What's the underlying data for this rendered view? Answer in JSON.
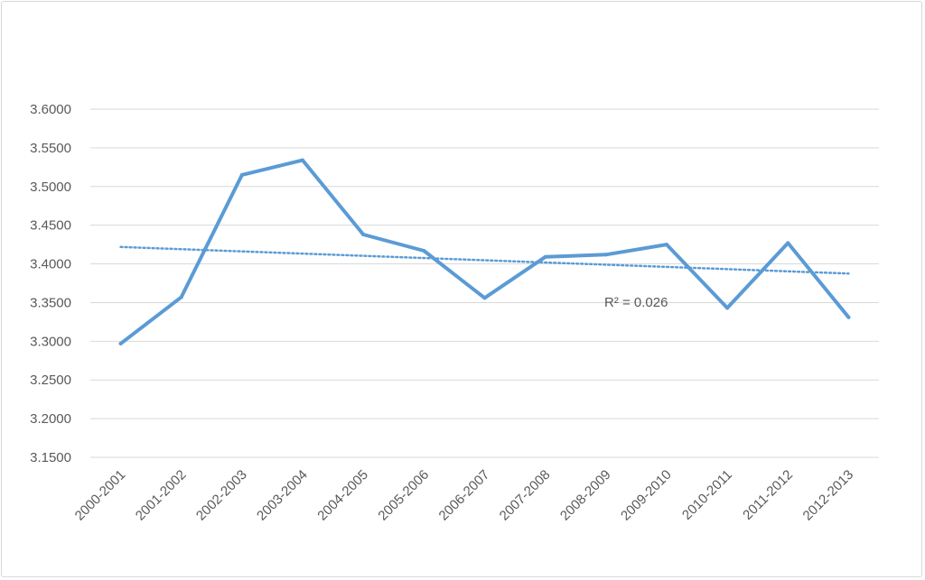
{
  "chart_data": {
    "type": "line",
    "categories": [
      "2000-2001",
      "2001-2002",
      "2002-2003",
      "2003-2004",
      "2004-2005",
      "2005-2006",
      "2006-2007",
      "2007-2008",
      "2008-2009",
      "2009-2010",
      "2010-2011",
      "2011-2012",
      "2012-2013"
    ],
    "series": [
      {
        "values": [
          3.297,
          3.357,
          3.515,
          3.534,
          3.438,
          3.417,
          3.356,
          3.409,
          3.412,
          3.425,
          3.343,
          3.427,
          3.331
        ],
        "color": "#5b9bd5"
      }
    ],
    "trendline": {
      "type": "linear",
      "style": "dotted",
      "color": "#5b9bd5",
      "label": "R² = 0.026"
    },
    "ylim": [
      3.15,
      3.6
    ],
    "yticks": [
      "3.1500",
      "3.2000",
      "3.2500",
      "3.3000",
      "3.3500",
      "3.4000",
      "3.4500",
      "3.5000",
      "3.5500",
      "3.6000"
    ],
    "grid": true,
    "legend": "none"
  }
}
